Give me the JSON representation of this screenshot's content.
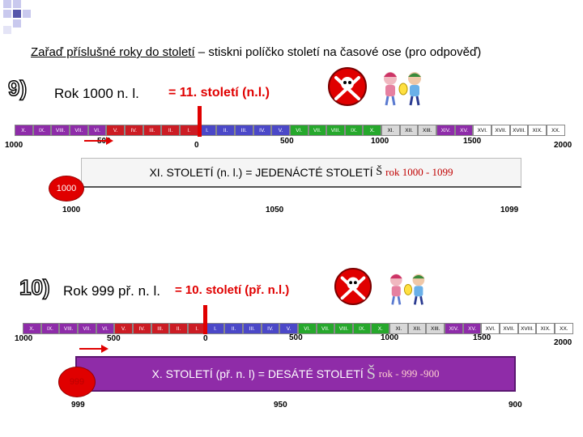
{
  "title": {
    "underlined": "Zařaď příslušné roky do století",
    "rest": " – stiskni políčko století na časové ose (pro odpověď)"
  },
  "q9": {
    "number": "9)",
    "year": "Rok 1000 n. l.",
    "answer": "= 11. století (n.l.)",
    "result_text": "XI. STOLETÍ (n. l.) = JEDENÁCTÉ STOLETÍ",
    "result_symbol": "Š",
    "result_range": "rok 1000 - 1099",
    "badge": "1000",
    "range_start": "1000",
    "range_mid": "1050",
    "range_end": "1099"
  },
  "q10": {
    "number": "10)",
    "year": "Rok 999 př. n. l.",
    "answer": "= 10. století (př. n.l.)",
    "result_text": "X. STOLETÍ (př. n. l) = DESÁTÉ STOLETÍ",
    "result_symbol": "Š",
    "result_range": "rok - 999 -900",
    "badge": "999",
    "range_start": "999",
    "range_mid": "950",
    "range_end": "900"
  },
  "timeline": {
    "cells": [
      {
        "label": "X.",
        "color": "#8e2ca9"
      },
      {
        "label": "IX.",
        "color": "#8e2ca9"
      },
      {
        "label": "VIII.",
        "color": "#8e2ca9"
      },
      {
        "label": "VII.",
        "color": "#8e2ca9"
      },
      {
        "label": "VI.",
        "color": "#8e2ca9"
      },
      {
        "label": "V.",
        "color": "#cc1c24"
      },
      {
        "label": "IV.",
        "color": "#cc1c24"
      },
      {
        "label": "III.",
        "color": "#cc1c24"
      },
      {
        "label": "II.",
        "color": "#cc1c24"
      },
      {
        "label": "I.",
        "color": "#cc1c24"
      },
      {
        "label": "I.",
        "color": "#4b48c8"
      },
      {
        "label": "II.",
        "color": "#4b48c8"
      },
      {
        "label": "III.",
        "color": "#4b48c8"
      },
      {
        "label": "IV.",
        "color": "#4b48c8"
      },
      {
        "label": "V.",
        "color": "#4b48c8"
      },
      {
        "label": "VI.",
        "color": "#26a82c"
      },
      {
        "label": "VII.",
        "color": "#26a82c"
      },
      {
        "label": "VIII.",
        "color": "#26a82c"
      },
      {
        "label": "IX.",
        "color": "#26a82c"
      },
      {
        "label": "X.",
        "color": "#26a82c"
      },
      {
        "label": "XI.",
        "color": "#d8d8d8"
      },
      {
        "label": "XII.",
        "color": "#d8d8d8"
      },
      {
        "label": "XIII.",
        "color": "#d8d8d8"
      },
      {
        "label": "XIV.",
        "color": "#8e2ca9"
      },
      {
        "label": "XV.",
        "color": "#8e2ca9"
      },
      {
        "label": "XVI.",
        "color": "#ffffff"
      },
      {
        "label": "XVII.",
        "color": "#ffffff"
      },
      {
        "label": "XVIII.",
        "color": "#ffffff"
      },
      {
        "label": "XIX.",
        "color": "#ffffff"
      },
      {
        "label": "XX.",
        "color": "#ffffff"
      }
    ],
    "scale": [
      "1000",
      "500",
      "0",
      "500",
      "1000",
      "1500",
      "2000"
    ]
  },
  "icons": [
    "skull-icon",
    "children-icon"
  ]
}
